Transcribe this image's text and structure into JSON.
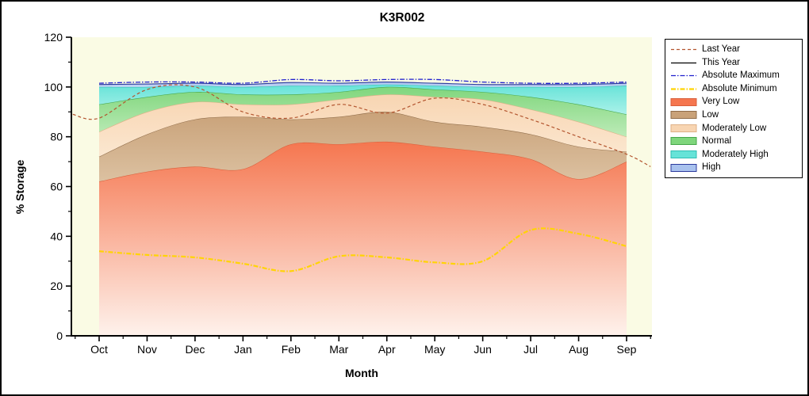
{
  "window": {
    "bg": "#ffffff",
    "border_color": "#000000"
  },
  "chart_data": {
    "type": "area",
    "title": "K3R002",
    "xlabel": "Month",
    "ylabel": "% Storage",
    "ylim": [
      0,
      120
    ],
    "yticks": [
      0,
      20,
      40,
      60,
      80,
      100,
      120
    ],
    "categories": [
      "Oct",
      "Nov",
      "Dec",
      "Jan",
      "Feb",
      "Mar",
      "Apr",
      "May",
      "Jun",
      "Jul",
      "Aug",
      "Sep"
    ],
    "plot_bg": "#FAFBE4",
    "grid": false,
    "legend_position": "right",
    "bands": [
      {
        "name": "Very Low",
        "fill_top": "#F5764F",
        "fill_bottom": "#FEF2EC",
        "edge": "#D95F3B",
        "top": [
          62,
          66,
          68,
          67,
          77,
          77,
          78,
          76,
          74,
          71,
          63,
          70
        ]
      },
      {
        "name": "Low",
        "fill_top": "#C9A279",
        "fill_bottom": "#DCC1A1",
        "edge": "#8F6C49",
        "top": [
          72,
          81,
          87,
          88,
          87,
          88,
          90,
          86,
          84,
          81,
          76,
          74
        ]
      },
      {
        "name": "Moderately Low",
        "fill_top": "#F8D5B2",
        "fill_bottom": "#FBE7D0",
        "edge": "#DFB187",
        "top": [
          82,
          90,
          94,
          93,
          93,
          95,
          97,
          96,
          95,
          91,
          86,
          80
        ]
      },
      {
        "name": "Normal",
        "fill_top": "#7FD67C",
        "fill_bottom": "#BDEBB8",
        "edge": "#45A649",
        "top": [
          93,
          96,
          98,
          97,
          97,
          98,
          100,
          99,
          98,
          96,
          93,
          89
        ]
      },
      {
        "name": "Moderately High",
        "fill_top": "#66E3D8",
        "fill_bottom": "#ABF1E9",
        "edge": "#2FBDB3",
        "top": [
          100,
          100,
          100.5,
          100,
          100.5,
          100.5,
          101,
          100.5,
          100,
          100,
          100,
          100.5
        ]
      },
      {
        "name": "High",
        "fill_top": "#A9C2EE",
        "fill_bottom": "#C6D8F6",
        "edge": "#2B3A9C",
        "top": [
          101,
          101.2,
          101.5,
          101,
          101.8,
          101.5,
          102,
          101.5,
          101,
          101,
          101,
          101.5
        ]
      }
    ],
    "lines": [
      {
        "name": "Last Year",
        "color": "#B3552F",
        "dash": "4 3",
        "width": 1.2,
        "x": [
          -0.55,
          0,
          1,
          2,
          3,
          4,
          5,
          6,
          7,
          8,
          9,
          10,
          11,
          11.5
        ],
        "values": [
          89,
          87.5,
          99,
          100,
          90,
          87.5,
          93,
          89.5,
          95.5,
          93,
          87,
          80,
          73,
          68
        ]
      },
      {
        "name": "This Year",
        "color": "#000000",
        "dash": "",
        "width": 1.2,
        "x": [],
        "values": []
      },
      {
        "name": "Absolute Maximum",
        "color": "#1F1FCD",
        "dash": "6 2 1.5 2",
        "width": 1.3,
        "x": [
          0,
          1,
          2,
          3,
          4,
          5,
          6,
          7,
          8,
          9,
          10,
          11
        ],
        "values": [
          101.5,
          102,
          102,
          101.5,
          103,
          102.5,
          103,
          103,
          102,
          101.5,
          101.5,
          102
        ]
      },
      {
        "name": "Absolute Minimum",
        "color": "#FFD404",
        "dash": "6 2 1.5 2",
        "width": 2.2,
        "x": [
          0,
          1,
          2,
          3,
          4,
          5,
          6,
          7,
          8,
          9,
          10,
          11
        ],
        "values": [
          34,
          32.5,
          31.5,
          29,
          26,
          32,
          31.5,
          29.5,
          30,
          42.5,
          41,
          36
        ]
      }
    ],
    "legend_entries": [
      "Last Year",
      "This Year",
      "Absolute Maximum",
      "Absolute Minimum",
      "Very Low",
      "Low",
      "Moderately Low",
      "Normal",
      "Moderately High",
      "High"
    ]
  }
}
